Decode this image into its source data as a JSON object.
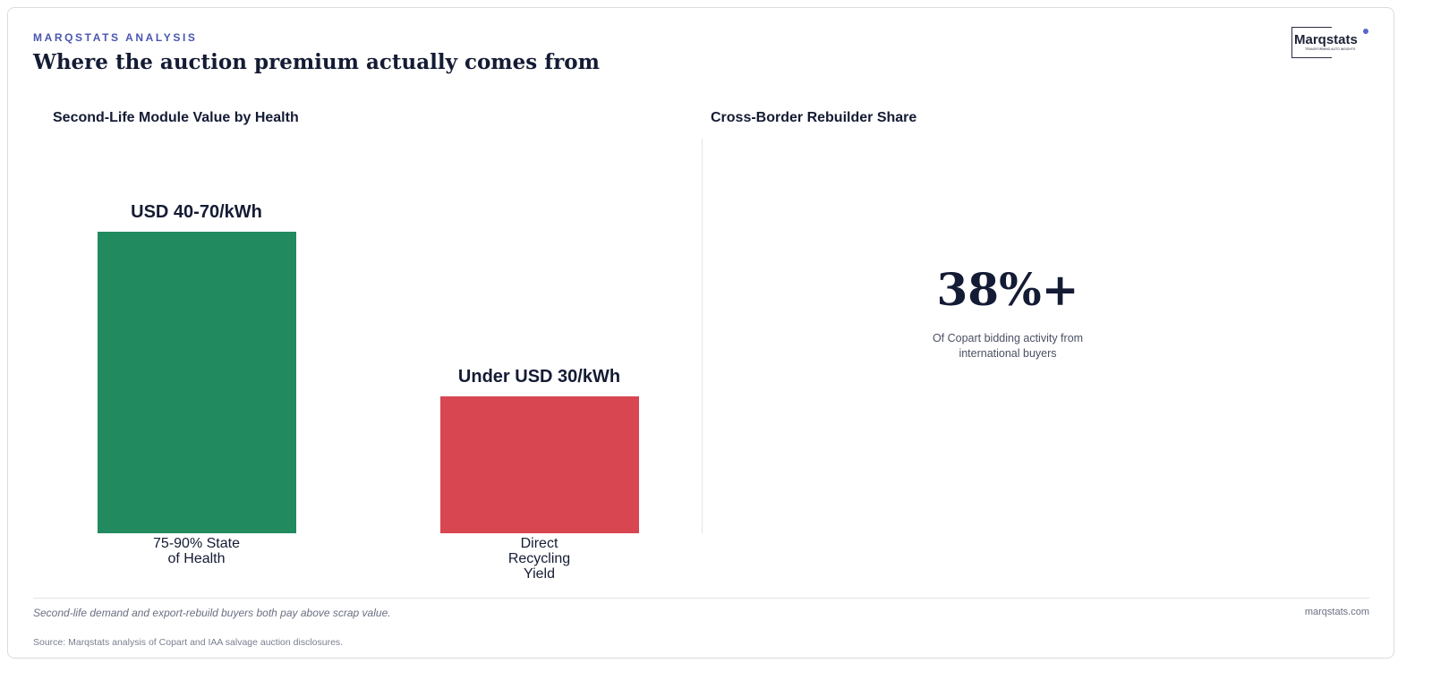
{
  "header": {
    "eyebrow": "MARQSTATS ANALYSIS",
    "title": "Where the auction premium actually comes from",
    "logo": "Marqstats",
    "tagline": "TRANSFORMING AUTO INSIGHTS"
  },
  "chart_data": [
    {
      "type": "bar",
      "title": "Second-Life Module Value by Health",
      "categories": [
        "75-90% State of Health",
        "Direct Recycling Yield"
      ],
      "values": [
        55,
        25
      ],
      "value_labels": [
        "USD 40-70/kWh",
        "Under USD 30/kWh"
      ],
      "colors": [
        "#218a5e",
        "#d84652"
      ]
    },
    {
      "type": "stat",
      "title": "Cross-Border Rebuilder Share",
      "value": 38,
      "value_label": "38%+",
      "caption": "Of Copart bidding activity from international buyers"
    }
  ],
  "footer": {
    "note": "Second-life demand and export-rebuild buyers both pay above scrap value.",
    "site": "marqstats.com",
    "source": "Source: Marqstats analysis of Copart and IAA salvage auction disclosures."
  }
}
